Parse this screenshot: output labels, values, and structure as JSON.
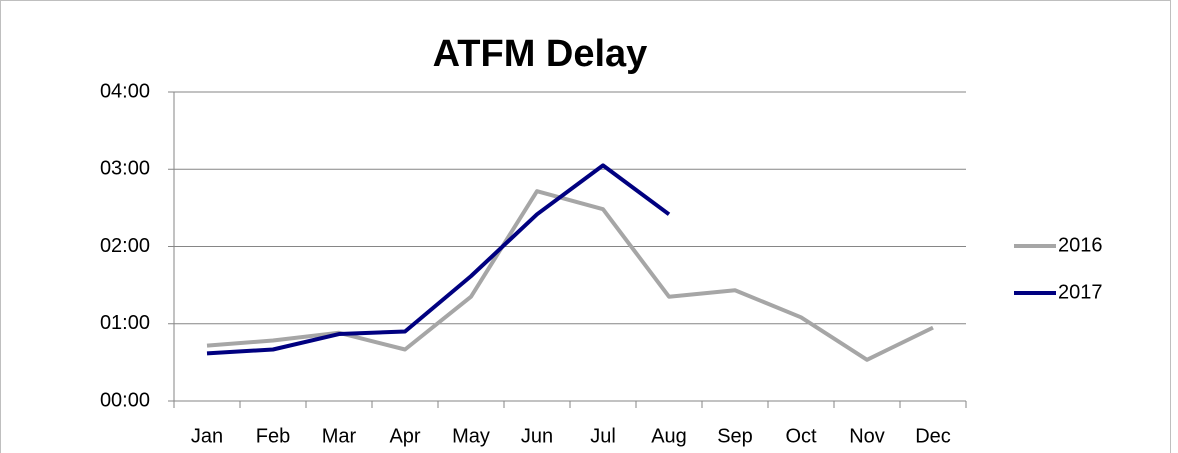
{
  "chart_data": {
    "type": "line",
    "title": "ATFM Delay",
    "categories": [
      "Jan",
      "Feb",
      "Mar",
      "Apr",
      "May",
      "Jun",
      "Jul",
      "Aug",
      "Sep",
      "Oct",
      "Nov",
      "Dec"
    ],
    "series": [
      {
        "name": "2016",
        "color": "#a6a6a6",
        "values": [
          43,
          47,
          53,
          40,
          81,
          163,
          149,
          81,
          86,
          65,
          32,
          57
        ]
      },
      {
        "name": "2017",
        "color": "#000080",
        "values": [
          37,
          40,
          52,
          54,
          97,
          145,
          183,
          145,
          null,
          null,
          null,
          null
        ]
      }
    ],
    "ylim": [
      0,
      240
    ],
    "yticks": [
      {
        "value": 0,
        "label": "00:00"
      },
      {
        "value": 60,
        "label": "01:00"
      },
      {
        "value": 120,
        "label": "02:00"
      },
      {
        "value": 180,
        "label": "03:00"
      },
      {
        "value": 240,
        "label": "04:00"
      }
    ],
    "grid": true,
    "legend": "right"
  }
}
